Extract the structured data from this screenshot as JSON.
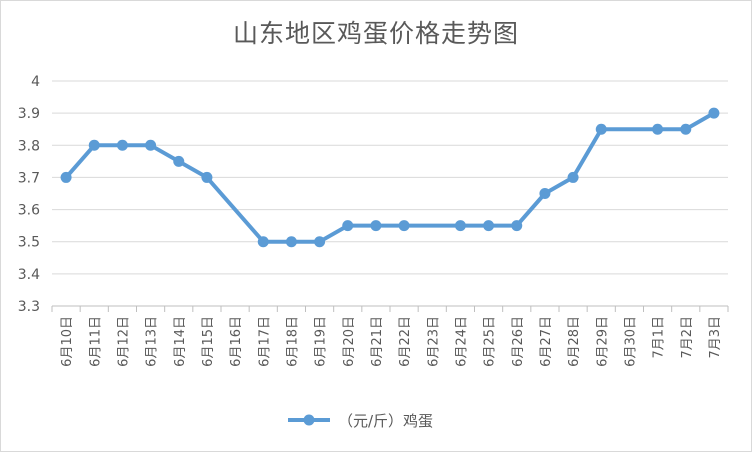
{
  "chart_data": {
    "type": "line",
    "title": "山东地区鸡蛋价格走势图",
    "xlabel": "",
    "ylabel": "",
    "ylim": [
      3.3,
      4.0
    ],
    "yticks": [
      "3.3",
      "3.4",
      "3.5",
      "3.6",
      "3.7",
      "3.8",
      "3.9",
      "4"
    ],
    "grid": true,
    "legend_position": "bottom",
    "categories": [
      "6月10日",
      "6月11日",
      "6月12日",
      "6月13日",
      "6月14日",
      "6月15日",
      "6月16日",
      "6月17日",
      "6月18日",
      "6月19日",
      "6月20日",
      "6月21日",
      "6月22日",
      "6月23日",
      "6月24日",
      "6月25日",
      "6月26日",
      "6月27日",
      "6月28日",
      "6月29日",
      "6月30日",
      "7月1日",
      "7月2日",
      "7月3日"
    ],
    "series": [
      {
        "name": "（元/斤）鸡蛋",
        "color": "#5b9bd5",
        "values": [
          3.7,
          3.8,
          3.8,
          3.8,
          3.75,
          3.7,
          null,
          3.5,
          3.5,
          3.5,
          3.55,
          3.55,
          3.55,
          null,
          3.55,
          3.55,
          3.55,
          3.65,
          3.7,
          3.85,
          null,
          3.85,
          3.85,
          3.9
        ]
      }
    ]
  }
}
